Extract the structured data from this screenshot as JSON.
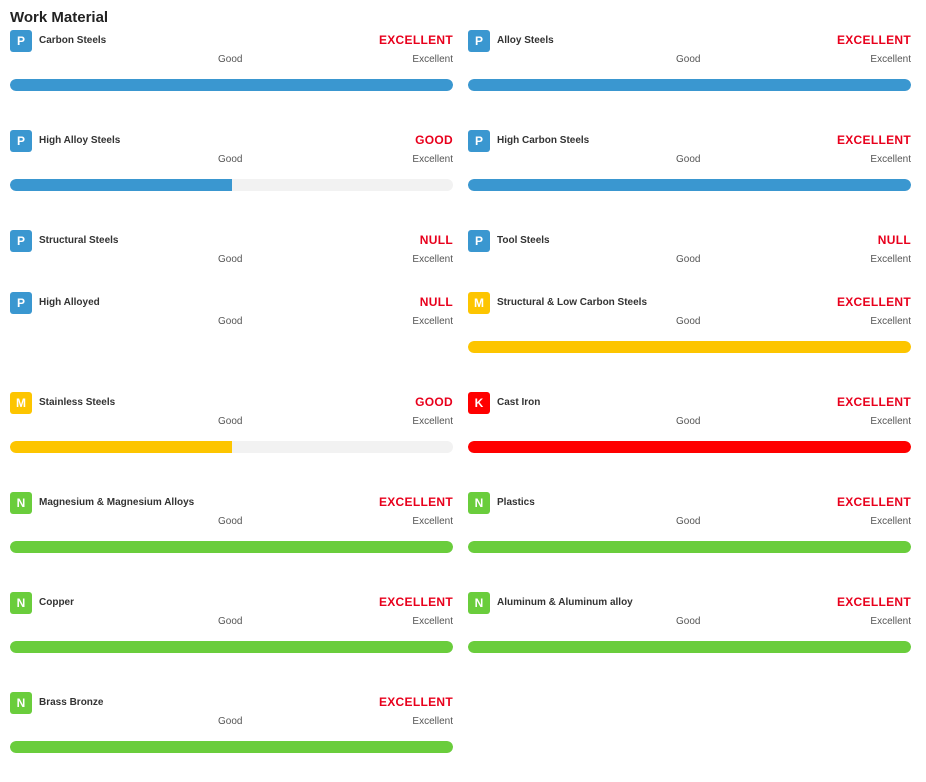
{
  "header": {
    "title": "Work Material"
  },
  "scale": {
    "low": "Good",
    "high": "Excellent"
  },
  "colors": {
    "P": "#3a97d0",
    "M": "#fdc500",
    "K": "#ff0000",
    "N": "#6acd3c",
    "rating": "#e8001c"
  },
  "materials": [
    {
      "code": "P",
      "name": "Carbon Steels",
      "rating": "EXCELLENT",
      "level": 1.0
    },
    {
      "code": "P",
      "name": "Alloy Steels",
      "rating": "EXCELLENT",
      "level": 1.0
    },
    {
      "code": "P",
      "name": "High Alloy Steels",
      "rating": "GOOD",
      "level": 0.5
    },
    {
      "code": "P",
      "name": "High Carbon Steels",
      "rating": "EXCELLENT",
      "level": 1.0
    },
    {
      "code": "P",
      "name": "Structural Steels",
      "rating": "NULL",
      "level": null
    },
    {
      "code": "P",
      "name": "Tool Steels",
      "rating": "NULL",
      "level": null
    },
    {
      "code": "P",
      "name": "High Alloyed",
      "rating": "NULL",
      "level": null
    },
    {
      "code": "M",
      "name": "Structural & Low Carbon Steels",
      "rating": "EXCELLENT",
      "level": 1.0
    },
    {
      "code": "M",
      "name": "Stainless Steels",
      "rating": "GOOD",
      "level": 0.5
    },
    {
      "code": "K",
      "name": "Cast Iron",
      "rating": "EXCELLENT",
      "level": 1.0
    },
    {
      "code": "N",
      "name": "Magnesium & Magnesium Alloys",
      "rating": "EXCELLENT",
      "level": 1.0
    },
    {
      "code": "N",
      "name": "Plastics",
      "rating": "EXCELLENT",
      "level": 1.0
    },
    {
      "code": "N",
      "name": "Copper",
      "rating": "EXCELLENT",
      "level": 1.0
    },
    {
      "code": "N",
      "name": "Aluminum & Aluminum alloy",
      "rating": "EXCELLENT",
      "level": 1.0
    },
    {
      "code": "N",
      "name": "Brass Bronze",
      "rating": "EXCELLENT",
      "level": 1.0
    }
  ]
}
